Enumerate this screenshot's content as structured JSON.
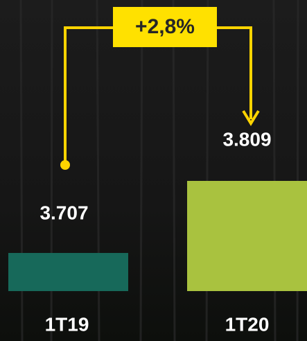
{
  "chart_data": {
    "type": "bar",
    "annotation": "+2,8%",
    "categories": [
      "1T19",
      "1T20"
    ],
    "values": [
      3707,
      3809
    ],
    "value_labels": [
      "3.707",
      "3.809"
    ],
    "colors": [
      "#17695a",
      "#a9c23f"
    ],
    "ylim": [
      3653,
      3809
    ],
    "grid": false
  }
}
